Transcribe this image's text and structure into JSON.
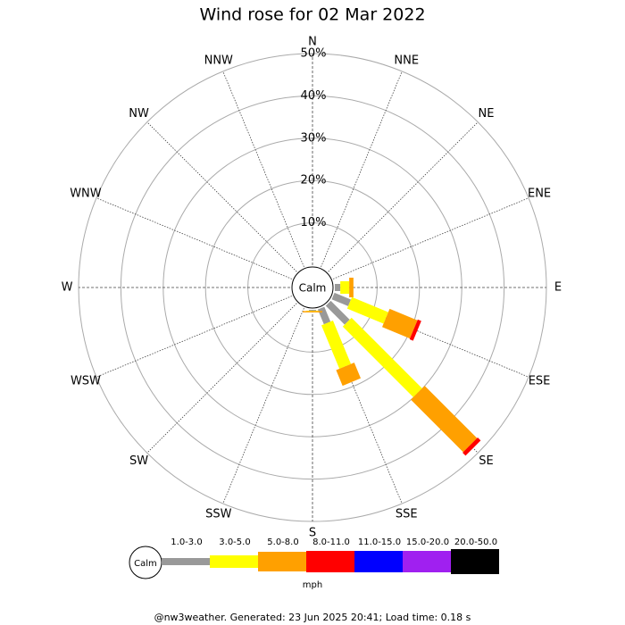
{
  "chart_data": {
    "type": "wind-rose",
    "title": "Wind rose for 02 Mar 2022",
    "directions": [
      "N",
      "NNE",
      "NE",
      "ENE",
      "E",
      "ESE",
      "SE",
      "SSE",
      "S",
      "SSW",
      "SW",
      "WSW",
      "W",
      "WNW",
      "NW",
      "NNW"
    ],
    "series": [
      {
        "name": "1.0-3.0",
        "color": "#999999",
        "values": [
          0,
          0,
          0,
          0,
          1.3,
          4.2,
          6.3,
          3.8,
          0.2,
          0,
          0,
          0,
          0,
          0,
          0,
          0
        ]
      },
      {
        "name": "3.0-5.0",
        "color": "#ffff00",
        "values": [
          0,
          0,
          0,
          0,
          2.1,
          9.3,
          23.6,
          11.1,
          0.1,
          0,
          0,
          0,
          0,
          0,
          0,
          0
        ]
      },
      {
        "name": "5.0-8.0",
        "color": "#ffa000",
        "values": [
          0,
          0,
          0,
          0,
          1.0,
          7.1,
          17.5,
          4.0,
          0.3,
          0,
          0,
          0,
          0,
          0,
          0,
          0
        ]
      },
      {
        "name": "8.0-11.0",
        "color": "#ff0000",
        "values": [
          0,
          0,
          0,
          0,
          0,
          0.9,
          1.0,
          0,
          0,
          0,
          0,
          0,
          0,
          0,
          0,
          0
        ]
      },
      {
        "name": "11.0-15.0",
        "color": "#0000ff",
        "values": [
          0,
          0,
          0,
          0,
          0,
          0,
          0,
          0,
          0,
          0,
          0,
          0,
          0,
          0,
          0,
          0
        ]
      },
      {
        "name": "15.0-20.0",
        "color": "#a020f0",
        "values": [
          0,
          0,
          0,
          0,
          0,
          0,
          0,
          0,
          0,
          0,
          0,
          0,
          0,
          0,
          0,
          0
        ]
      },
      {
        "name": "20.0-50.0",
        "color": "#000000",
        "values": [
          0,
          0,
          0,
          0,
          0,
          0,
          0,
          0,
          0,
          0,
          0,
          0,
          0,
          0,
          0,
          0
        ]
      }
    ],
    "rlim": [
      0,
      50
    ],
    "rticks": [
      {
        "value": 10,
        "label": "10%"
      },
      {
        "value": 20,
        "label": "20%"
      },
      {
        "value": 30,
        "label": "30%"
      },
      {
        "value": 40,
        "label": "40%"
      },
      {
        "value": 50,
        "label": "50%"
      }
    ],
    "calm_label": "Calm",
    "unit": "mph"
  },
  "footer": "@nw3weather. Generated: 23 Jun 2025 20:41; Load time: 0.18 s"
}
